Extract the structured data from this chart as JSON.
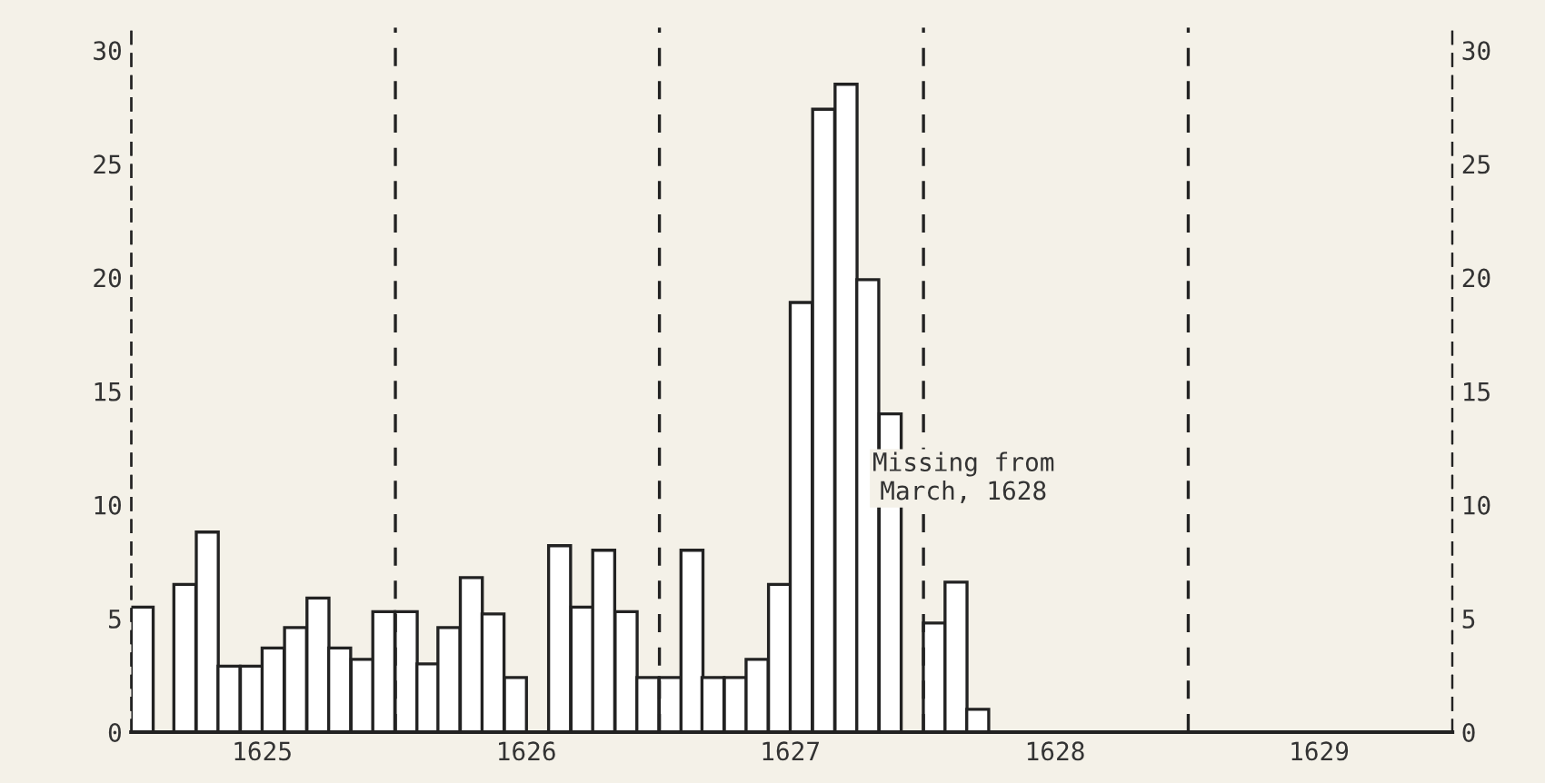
{
  "chart_data": {
    "type": "bar",
    "x": [
      "1625-01-16",
      "1625-02-15",
      "1625-03-16",
      "1625-04-16",
      "1625-05-16",
      "1625-06-16",
      "1625-07-16",
      "1625-08-16",
      "1625-09-16",
      "1625-10-16",
      "1625-11-16",
      "1625-12-16",
      "1626-01-16",
      "1626-02-15",
      "1626-03-16",
      "1626-04-16",
      "1626-05-16",
      "1626-06-16",
      "1626-07-16",
      "1626-08-16",
      "1626-09-16",
      "1626-10-16",
      "1626-11-16",
      "1626-12-16",
      "1627-01-16",
      "1627-02-15",
      "1627-03-16",
      "1627-04-16",
      "1627-05-16",
      "1627-06-16",
      "1627-07-16",
      "1627-08-16",
      "1627-09-16",
      "1627-10-16",
      "1627-11-16",
      "1627-12-16",
      "1628-01-16",
      "1628-02-15",
      "1628-03-16"
    ],
    "values": [
      5.5,
      null,
      6.5,
      8.8,
      2.9,
      2.9,
      3.7,
      4.6,
      5.9,
      3.7,
      3.2,
      5.3,
      5.3,
      3.0,
      4.6,
      6.8,
      5.2,
      2.4,
      null,
      8.2,
      5.5,
      8.0,
      5.3,
      2.4,
      2.4,
      8.0,
      2.4,
      2.4,
      3.2,
      6.5,
      18.9,
      27.4,
      28.5,
      19.9,
      14.0,
      null,
      4.8,
      6.6,
      1.0
    ],
    "color": "#ffffff",
    "xlim": [
      "1625-01",
      "1630-01"
    ],
    "xticks": [
      {
        "value": "1625-07",
        "label": "1625"
      },
      {
        "value": "1626-07",
        "label": "1626"
      },
      {
        "value": "1627-07",
        "label": "1627"
      },
      {
        "value": "1628-07",
        "label": "1628"
      },
      {
        "value": "1629-07",
        "label": "1629"
      }
    ],
    "ylim": [
      0,
      31
    ],
    "yticks": [
      0,
      5,
      10,
      15,
      20,
      25,
      30
    ],
    "y2lim": [
      0,
      31
    ],
    "y2ticks": [
      0,
      5,
      10,
      15,
      20,
      25,
      30
    ],
    "ref_lines": [
      {
        "axis": "x",
        "value": "1626-01",
        "line_style": "dashed"
      },
      {
        "axis": "x",
        "value": "1627-01",
        "line_style": "dashed"
      },
      {
        "axis": "x",
        "value": "1628-01",
        "line_style": "dashed"
      },
      {
        "axis": "x",
        "value": "1629-01",
        "line_style": "dashed"
      }
    ],
    "annotations": [
      "Missing from\nMarch, 1628"
    ],
    "grid": false,
    "legend": false
  }
}
